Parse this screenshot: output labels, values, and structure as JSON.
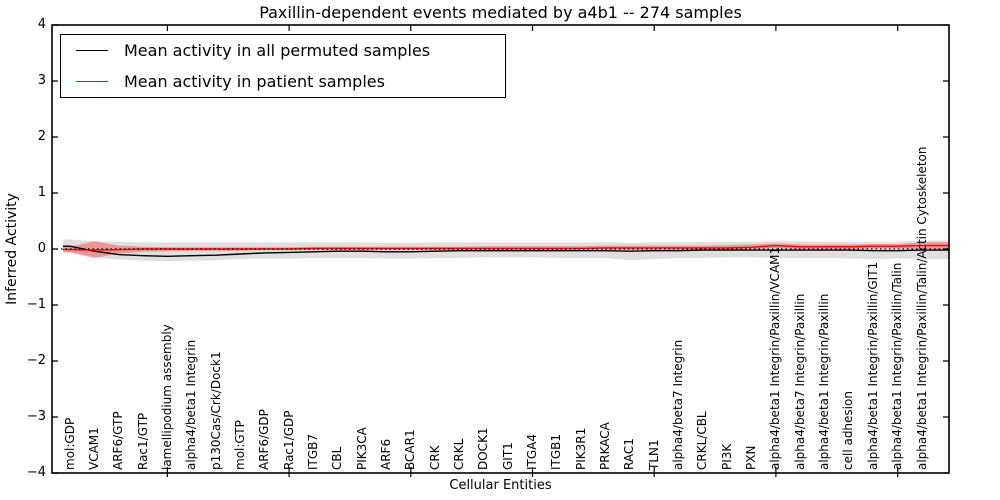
{
  "figure": {
    "title": "Paxillin-dependent events mediated by a4b1 -- 274 samples",
    "background": "#ffffff"
  },
  "legend": {
    "position": "upper left",
    "entries": [
      {
        "label": "Mean activity in all permuted samples",
        "color": "#000000"
      },
      {
        "label": "Mean activity in patient samples",
        "color": "#ff0000"
      }
    ]
  },
  "axes": {
    "xlabel": "Cellular Entities",
    "ylabel": "Inferred Activity",
    "y_tick_labels": [
      "4",
      "3",
      "2",
      "1",
      "0",
      "−1",
      "−2",
      "−3",
      "−4"
    ],
    "y_tick_values": [
      4,
      3,
      2,
      1,
      0,
      -1,
      -2,
      -3,
      -4
    ]
  },
  "chart_data": {
    "type": "line",
    "title": "Paxillin-dependent events mediated by a4b1 -- 274 samples",
    "xlabel": "Cellular Entities",
    "ylabel": "Inferred Activity",
    "ylim": [
      -4,
      4
    ],
    "grid": false,
    "legend_position": "upper left",
    "x_tick_indices": [
      4,
      9,
      14,
      19,
      24,
      29,
      34
    ],
    "zero_line": {
      "value": 0,
      "style": "dotted",
      "color": "#000000"
    },
    "categories": [
      "mol:GDP",
      "VCAM1",
      "ARF6/GTP",
      "Rac1/GTP",
      "lamellipodium assembly",
      "alpha4/beta1 Integrin",
      "p130Cas/Crk/Dock1",
      "mol:GTP",
      "ARF6/GDP",
      "Rac1/GDP",
      "ITGB7",
      "CBL",
      "PIK3CA",
      "ARF6",
      "BCAR1",
      "CRK",
      "CRKL",
      "DOCK1",
      "GIT1",
      "ITGA4",
      "ITGB1",
      "PIK3R1",
      "PRKACA",
      "RAC1",
      "TLN1",
      "alpha4/beta7 Integrin",
      "CRKL/CBL",
      "PI3K",
      "PXN",
      "alpha4/beta1 Integrin/Paxillin/VCAM1",
      "alpha4/beta7 Integrin/Paxillin",
      "alpha4/beta1 Integrin/Paxillin",
      "cell adhesion",
      "alpha4/beta1 Integrin/Paxillin/GIT1",
      "alpha4/beta1 Integrin/Paxillin/Talin",
      "alpha4/beta1 Integrin/Paxillin/Talin/Actin Cytoskeleton"
    ],
    "series": [
      {
        "name": "Mean activity in all permuted samples",
        "color": "#000000",
        "style": "solid",
        "band_color": "rgba(128,128,128,0.25)",
        "values": [
          0.05,
          -0.04,
          -0.1,
          -0.12,
          -0.13,
          -0.12,
          -0.11,
          -0.09,
          -0.07,
          -0.06,
          -0.05,
          -0.04,
          -0.04,
          -0.05,
          -0.05,
          -0.04,
          -0.03,
          -0.03,
          -0.03,
          -0.03,
          -0.03,
          -0.03,
          -0.03,
          -0.04,
          -0.03,
          -0.03,
          -0.02,
          -0.02,
          -0.02,
          -0.02,
          -0.02,
          -0.02,
          -0.02,
          -0.03,
          -0.03,
          -0.02
        ],
        "band_upper": [
          0.17,
          0.14,
          0.13,
          0.12,
          0.12,
          0.12,
          0.12,
          0.12,
          0.12,
          0.12,
          0.12,
          0.12,
          0.12,
          0.11,
          0.11,
          0.12,
          0.12,
          0.12,
          0.12,
          0.12,
          0.12,
          0.12,
          0.12,
          0.11,
          0.12,
          0.12,
          0.13,
          0.13,
          0.13,
          0.14,
          0.14,
          0.13,
          0.13,
          0.12,
          0.13,
          0.15
        ],
        "band_lower": [
          -0.05,
          -0.15,
          -0.19,
          -0.21,
          -0.22,
          -0.21,
          -0.2,
          -0.18,
          -0.17,
          -0.17,
          -0.16,
          -0.16,
          -0.16,
          -0.17,
          -0.17,
          -0.16,
          -0.16,
          -0.15,
          -0.15,
          -0.15,
          -0.16,
          -0.16,
          -0.16,
          -0.2,
          -0.18,
          -0.16,
          -0.16,
          -0.15,
          -0.15,
          -0.16,
          -0.16,
          -0.16,
          -0.17,
          -0.18,
          -0.17,
          -0.18
        ]
      },
      {
        "name": "Mean activity in patient samples",
        "color": "#ff0000",
        "style": "solid",
        "band_color": "rgba(255,0,0,0.32)",
        "values": [
          -0.01,
          -0.02,
          -0.01,
          0.0,
          0.0,
          0.0,
          0.0,
          0.0,
          0.0,
          0.0,
          0.01,
          0.01,
          0.01,
          0.01,
          0.01,
          0.01,
          0.01,
          0.01,
          0.01,
          0.01,
          0.01,
          0.01,
          0.02,
          0.02,
          0.02,
          0.02,
          0.02,
          0.02,
          0.03,
          0.06,
          0.04,
          0.04,
          0.04,
          0.05,
          0.05,
          0.06
        ],
        "band_upper": [
          0.04,
          0.14,
          0.06,
          0.04,
          0.03,
          0.03,
          0.03,
          0.03,
          0.03,
          0.03,
          0.04,
          0.04,
          0.04,
          0.04,
          0.04,
          0.04,
          0.04,
          0.05,
          0.05,
          0.05,
          0.05,
          0.05,
          0.06,
          0.06,
          0.06,
          0.06,
          0.06,
          0.07,
          0.08,
          0.1,
          0.08,
          0.08,
          0.08,
          0.09,
          0.09,
          0.12
        ],
        "band_lower": [
          -0.06,
          -0.16,
          -0.08,
          -0.05,
          -0.04,
          -0.03,
          -0.03,
          -0.03,
          -0.02,
          -0.02,
          -0.02,
          -0.02,
          -0.02,
          -0.02,
          -0.02,
          -0.02,
          -0.02,
          -0.02,
          -0.02,
          -0.02,
          -0.02,
          -0.01,
          -0.01,
          -0.01,
          -0.01,
          -0.01,
          -0.01,
          -0.01,
          0.0,
          0.02,
          0.0,
          0.0,
          0.0,
          0.01,
          0.01,
          0.0
        ]
      }
    ]
  }
}
